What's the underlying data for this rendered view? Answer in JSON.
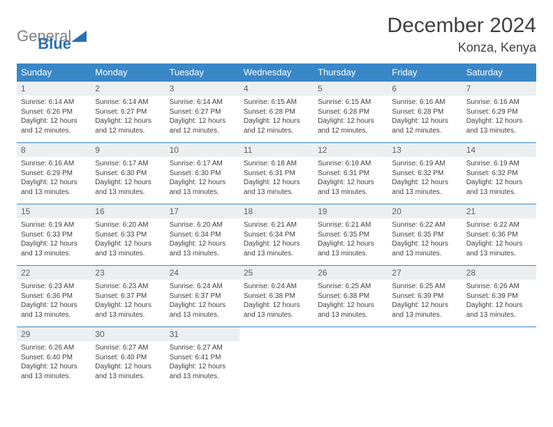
{
  "brand": {
    "part1": "General",
    "part2": "Blue"
  },
  "title": "December 2024",
  "location": "Konza, Kenya",
  "colors": {
    "header_bg": "#3a87c8",
    "daynum_bg": "#eceff1",
    "border": "#3a87c8",
    "logo_gray": "#808080",
    "logo_blue": "#2a6fb5"
  },
  "weekdays": [
    "Sunday",
    "Monday",
    "Tuesday",
    "Wednesday",
    "Thursday",
    "Friday",
    "Saturday"
  ],
  "weeks": [
    [
      {
        "n": "1",
        "sr": "6:14 AM",
        "ss": "6:26 PM",
        "dl": "12 hours and 12 minutes."
      },
      {
        "n": "2",
        "sr": "6:14 AM",
        "ss": "6:27 PM",
        "dl": "12 hours and 12 minutes."
      },
      {
        "n": "3",
        "sr": "6:14 AM",
        "ss": "6:27 PM",
        "dl": "12 hours and 12 minutes."
      },
      {
        "n": "4",
        "sr": "6:15 AM",
        "ss": "6:28 PM",
        "dl": "12 hours and 12 minutes."
      },
      {
        "n": "5",
        "sr": "6:15 AM",
        "ss": "6:28 PM",
        "dl": "12 hours and 12 minutes."
      },
      {
        "n": "6",
        "sr": "6:16 AM",
        "ss": "6:28 PM",
        "dl": "12 hours and 12 minutes."
      },
      {
        "n": "7",
        "sr": "6:16 AM",
        "ss": "6:29 PM",
        "dl": "12 hours and 13 minutes."
      }
    ],
    [
      {
        "n": "8",
        "sr": "6:16 AM",
        "ss": "6:29 PM",
        "dl": "12 hours and 13 minutes."
      },
      {
        "n": "9",
        "sr": "6:17 AM",
        "ss": "6:30 PM",
        "dl": "12 hours and 13 minutes."
      },
      {
        "n": "10",
        "sr": "6:17 AM",
        "ss": "6:30 PM",
        "dl": "12 hours and 13 minutes."
      },
      {
        "n": "11",
        "sr": "6:18 AM",
        "ss": "6:31 PM",
        "dl": "12 hours and 13 minutes."
      },
      {
        "n": "12",
        "sr": "6:18 AM",
        "ss": "6:31 PM",
        "dl": "12 hours and 13 minutes."
      },
      {
        "n": "13",
        "sr": "6:19 AM",
        "ss": "6:32 PM",
        "dl": "12 hours and 13 minutes."
      },
      {
        "n": "14",
        "sr": "6:19 AM",
        "ss": "6:32 PM",
        "dl": "12 hours and 13 minutes."
      }
    ],
    [
      {
        "n": "15",
        "sr": "6:19 AM",
        "ss": "6:33 PM",
        "dl": "12 hours and 13 minutes."
      },
      {
        "n": "16",
        "sr": "6:20 AM",
        "ss": "6:33 PM",
        "dl": "12 hours and 13 minutes."
      },
      {
        "n": "17",
        "sr": "6:20 AM",
        "ss": "6:34 PM",
        "dl": "12 hours and 13 minutes."
      },
      {
        "n": "18",
        "sr": "6:21 AM",
        "ss": "6:34 PM",
        "dl": "12 hours and 13 minutes."
      },
      {
        "n": "19",
        "sr": "6:21 AM",
        "ss": "6:35 PM",
        "dl": "12 hours and 13 minutes."
      },
      {
        "n": "20",
        "sr": "6:22 AM",
        "ss": "6:35 PM",
        "dl": "12 hours and 13 minutes."
      },
      {
        "n": "21",
        "sr": "6:22 AM",
        "ss": "6:36 PM",
        "dl": "12 hours and 13 minutes."
      }
    ],
    [
      {
        "n": "22",
        "sr": "6:23 AM",
        "ss": "6:36 PM",
        "dl": "12 hours and 13 minutes."
      },
      {
        "n": "23",
        "sr": "6:23 AM",
        "ss": "6:37 PM",
        "dl": "12 hours and 13 minutes."
      },
      {
        "n": "24",
        "sr": "6:24 AM",
        "ss": "6:37 PM",
        "dl": "12 hours and 13 minutes."
      },
      {
        "n": "25",
        "sr": "6:24 AM",
        "ss": "6:38 PM",
        "dl": "12 hours and 13 minutes."
      },
      {
        "n": "26",
        "sr": "6:25 AM",
        "ss": "6:38 PM",
        "dl": "12 hours and 13 minutes."
      },
      {
        "n": "27",
        "sr": "6:25 AM",
        "ss": "6:39 PM",
        "dl": "12 hours and 13 minutes."
      },
      {
        "n": "28",
        "sr": "6:26 AM",
        "ss": "6:39 PM",
        "dl": "12 hours and 13 minutes."
      }
    ],
    [
      {
        "n": "29",
        "sr": "6:26 AM",
        "ss": "6:40 PM",
        "dl": "12 hours and 13 minutes."
      },
      {
        "n": "30",
        "sr": "6:27 AM",
        "ss": "6:40 PM",
        "dl": "12 hours and 13 minutes."
      },
      {
        "n": "31",
        "sr": "6:27 AM",
        "ss": "6:41 PM",
        "dl": "12 hours and 13 minutes."
      },
      null,
      null,
      null,
      null
    ]
  ],
  "labels": {
    "sunrise": "Sunrise:",
    "sunset": "Sunset:",
    "daylight": "Daylight:"
  }
}
